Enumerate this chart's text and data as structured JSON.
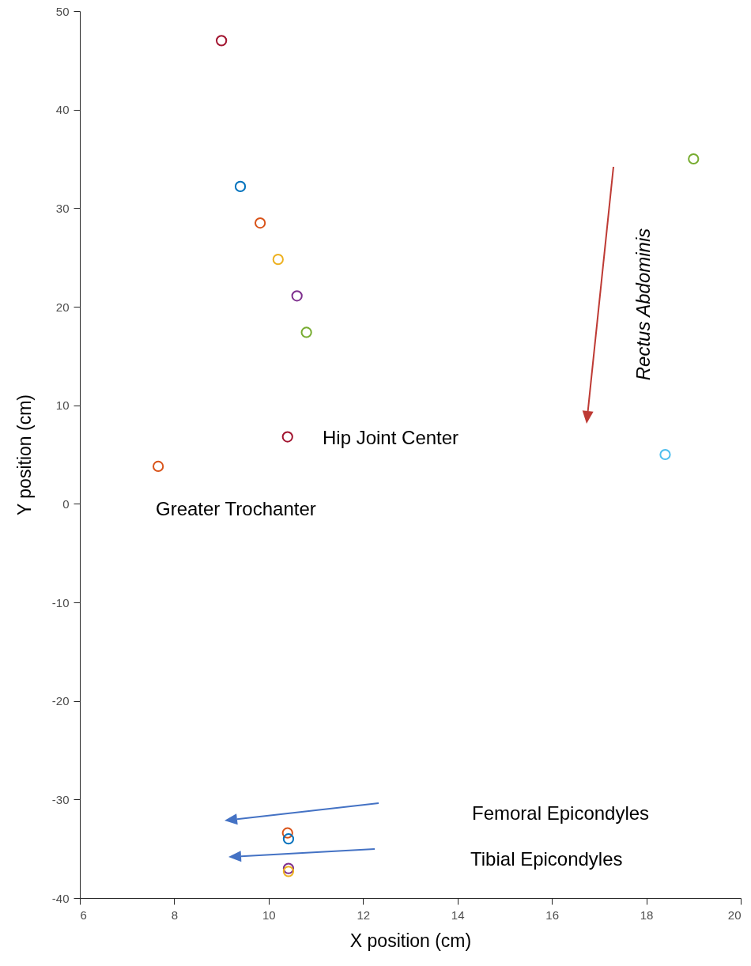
{
  "chart_data": {
    "type": "scatter",
    "xlabel": "X position (cm)",
    "ylabel": "Y position (cm)",
    "x": [
      9.0,
      9.4,
      9.82,
      10.2,
      10.6,
      10.8,
      10.4,
      7.66,
      19.0,
      18.4,
      10.4,
      10.42,
      10.42,
      10.42
    ],
    "values": [
      47.0,
      32.2,
      28.5,
      24.8,
      21.1,
      17.4,
      6.8,
      3.8,
      35.0,
      5.0,
      -33.4,
      -34.0,
      -37.0,
      -37.3
    ],
    "colors": [
      "#a2142f",
      "#0072bd",
      "#d95319",
      "#edb120",
      "#7e2f8e",
      "#77ac30",
      "#a2142f",
      "#d95319",
      "#77ac30",
      "#4dbeee",
      "#d95319",
      "#0072bd",
      "#7e2f8e",
      "#edb120"
    ],
    "marker": "circle",
    "xlim": [
      6,
      20
    ],
    "xticks": [
      6,
      8,
      10,
      12,
      14,
      16,
      18,
      20
    ],
    "ylim": [
      -40,
      50
    ],
    "yticks": [
      -40,
      -30,
      -20,
      -10,
      0,
      10,
      20,
      30,
      40,
      50
    ],
    "annotations": [
      "Hip Joint Center",
      "Greater Trochanter",
      "Rectus Abdominis",
      "Femoral Epicondyles",
      "Tibial Epicondyles"
    ]
  }
}
